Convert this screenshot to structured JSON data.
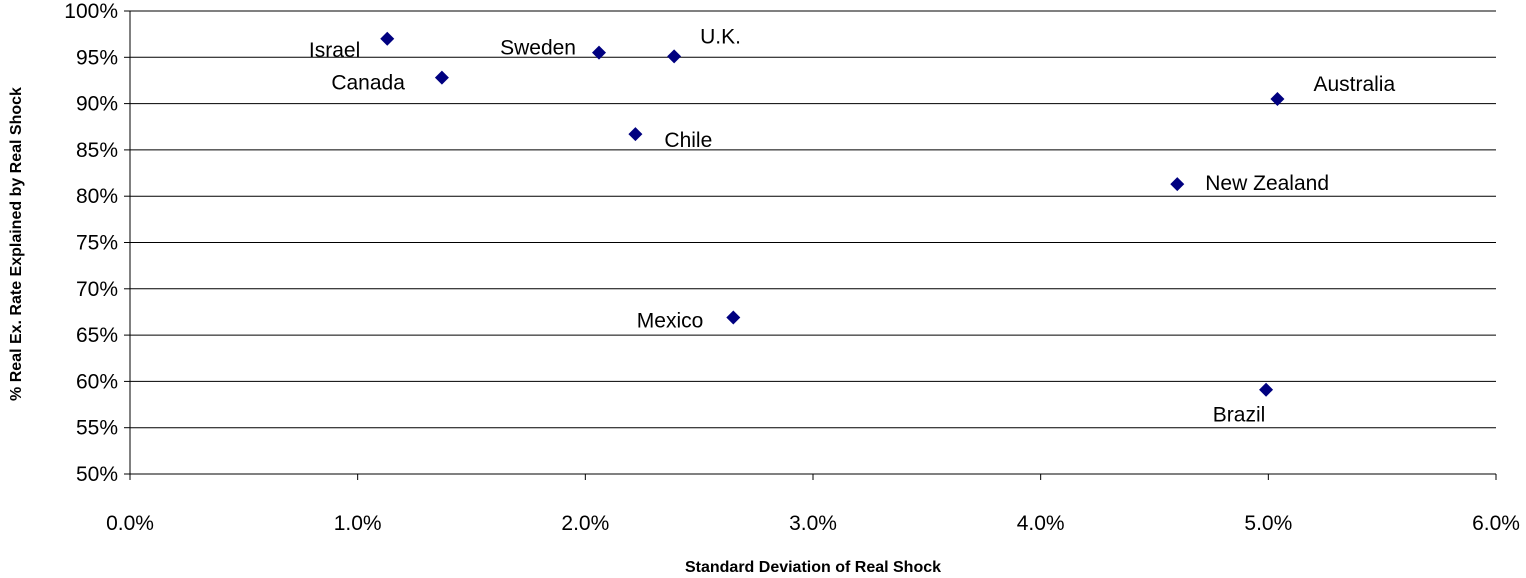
{
  "chart_data": {
    "type": "scatter",
    "xlabel": "Standard Deviation of Real Shock",
    "ylabel": "% Real Ex. Rate Explained by Real Shock",
    "xlim": [
      0.0,
      0.06
    ],
    "ylim": [
      0.5,
      1.0
    ],
    "x_ticks": [
      "0.0%",
      "1.0%",
      "2.0%",
      "3.0%",
      "4.0%",
      "5.0%",
      "6.0%"
    ],
    "y_ticks": [
      "50%",
      "55%",
      "60%",
      "65%",
      "70%",
      "75%",
      "80%",
      "85%",
      "90%",
      "95%",
      "100%"
    ],
    "grid": "horizontal major gridlines",
    "marker": "diamond",
    "marker_color": "#000080",
    "points": [
      {
        "label": "Israel",
        "x": 0.0113,
        "y": 0.97
      },
      {
        "label": "Canada",
        "x": 0.0137,
        "y": 0.928
      },
      {
        "label": "Sweden",
        "x": 0.0206,
        "y": 0.955
      },
      {
        "label": "U.K.",
        "x": 0.0239,
        "y": 0.951
      },
      {
        "label": "Chile",
        "x": 0.0222,
        "y": 0.867
      },
      {
        "label": "Mexico",
        "x": 0.0265,
        "y": 0.669
      },
      {
        "label": "New Zealand",
        "x": 0.046,
        "y": 0.813
      },
      {
        "label": "Australia",
        "x": 0.0504,
        "y": 0.905
      },
      {
        "label": "Brazil",
        "x": 0.0499,
        "y": 0.591
      }
    ]
  }
}
